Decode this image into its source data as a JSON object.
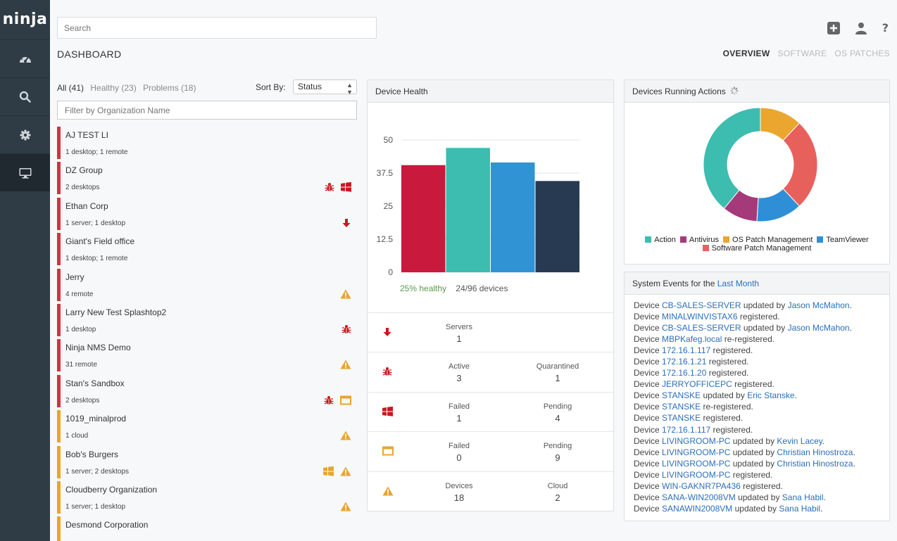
{
  "app": {
    "logo": "ninja"
  },
  "nav": [
    {
      "icon": "dashboard-gauge-icon"
    },
    {
      "icon": "search-icon"
    },
    {
      "icon": "gear-icon"
    },
    {
      "icon": "monitor-icon",
      "active": true
    }
  ],
  "search": {
    "placeholder": "Search"
  },
  "top_icons": [
    "add-icon",
    "user-icon",
    "help-icon"
  ],
  "help_label": "?",
  "page_title": "DASHBOARD",
  "tabs": [
    {
      "label": "OVERVIEW",
      "active": true
    },
    {
      "label": "SOFTWARE"
    },
    {
      "label": "OS PATCHES"
    }
  ],
  "filters": {
    "all": "All (41)",
    "healthy": "Healthy (23)",
    "problems": "Problems (18)"
  },
  "sort": {
    "label": "Sort By:",
    "value": "Status"
  },
  "org_filter": {
    "placeholder": "Filter by Organization Name"
  },
  "orgs": [
    {
      "name": "AJ TEST LI",
      "meta": "1 desktop; 1 remote",
      "status": "red",
      "icons": []
    },
    {
      "name": "DZ Group",
      "meta": "2 desktops",
      "status": "red",
      "icons": [
        "bug-icon",
        "windows-icon"
      ]
    },
    {
      "name": "Ethan Corp",
      "meta": "1 server; 1 desktop",
      "status": "red",
      "icons": [
        "arrow-down-icon"
      ]
    },
    {
      "name": "Giant's Field office",
      "meta": "1 desktop; 1 remote",
      "status": "red",
      "icons": []
    },
    {
      "name": "Jerry",
      "meta": "4 remote",
      "status": "red",
      "icons": [
        "warning-icon"
      ]
    },
    {
      "name": "Larry New Test Splashtop2",
      "meta": "1 desktop",
      "status": "red",
      "icons": [
        "bug-icon"
      ]
    },
    {
      "name": "Ninja NMS Demo",
      "meta": "31 remote",
      "status": "red",
      "icons": [
        "warning-icon"
      ]
    },
    {
      "name": "Stan's Sandbox",
      "meta": "2 desktops",
      "status": "red",
      "icons": [
        "bug-icon",
        "window-icon"
      ]
    },
    {
      "name": "1019_minalprod",
      "meta": "1 cloud",
      "status": "orange",
      "icons": [
        "warning-icon"
      ]
    },
    {
      "name": "Bob's Burgers",
      "meta": "1 server; 2 desktops",
      "status": "orange",
      "icons": [
        "windows-icon-orange",
        "warning-icon"
      ]
    },
    {
      "name": "Cloudberry Organization",
      "meta": "1 server; 1 desktop",
      "status": "orange",
      "icons": [
        "warning-icon"
      ]
    },
    {
      "name": "Desmond Corporation",
      "meta": "",
      "status": "orange",
      "icons": []
    }
  ],
  "colors": {
    "red": "#cc3540",
    "orange": "#e9a42f",
    "link": "#2a6ebb"
  },
  "device_health": {
    "title": "Device Health",
    "healthy_text": "25% healthy",
    "devices_text": "24/96 devices",
    "stats": [
      {
        "icon": "arrow-down-icon",
        "cols": [
          {
            "label": "Servers",
            "value": "1"
          }
        ]
      },
      {
        "icon": "bug-icon",
        "cols": [
          {
            "label": "Active",
            "value": "3"
          },
          {
            "label": "Quarantined",
            "value": "1"
          }
        ]
      },
      {
        "icon": "windows-icon",
        "cols": [
          {
            "label": "Failed",
            "value": "1"
          },
          {
            "label": "Pending",
            "value": "4"
          }
        ]
      },
      {
        "icon": "window-icon",
        "cols": [
          {
            "label": "Failed",
            "value": "0"
          },
          {
            "label": "Pending",
            "value": "9"
          }
        ]
      },
      {
        "icon": "warning-icon",
        "cols": [
          {
            "label": "Devices",
            "value": "18"
          },
          {
            "label": "Cloud",
            "value": "2"
          }
        ]
      }
    ]
  },
  "running_actions": {
    "title": "Devices Running Actions",
    "loading_icon": "spinner-icon"
  },
  "system_events": {
    "title_prefix": "System Events for the",
    "title_link": "Last Month",
    "events": [
      [
        "Device ",
        {
          "l": "CB-SALES-SERVER"
        },
        " updated by ",
        {
          "l": "Jason McMahon"
        },
        "."
      ],
      [
        "Device ",
        {
          "l": "MINALWINVISTAX6"
        },
        " registered."
      ],
      [
        "Device ",
        {
          "l": "CB-SALES-SERVER"
        },
        " updated by ",
        {
          "l": "Jason McMahon"
        },
        "."
      ],
      [
        "Device ",
        {
          "l": "MBPKafeg.local"
        },
        " re-registered."
      ],
      [
        "Device ",
        {
          "l": "172.16.1.117"
        },
        " registered."
      ],
      [
        "Device ",
        {
          "l": "172.16.1.21"
        },
        " registered."
      ],
      [
        "Device ",
        {
          "l": "172.16.1.20"
        },
        " registered."
      ],
      [
        "Device ",
        {
          "l": "JERRYOFFICEPC"
        },
        " registered."
      ],
      [
        "Device ",
        {
          "l": "STANSKE"
        },
        " updated by ",
        {
          "l": "Eric Stanske"
        },
        "."
      ],
      [
        "Device ",
        {
          "l": "STANSKE"
        },
        " re-registered."
      ],
      [
        "Device ",
        {
          "l": "STANSKE"
        },
        " registered."
      ],
      [
        "Device ",
        {
          "l": "172.16.1.117"
        },
        " registered."
      ],
      [
        "Device ",
        {
          "l": "LIVINGROOM-PC"
        },
        " updated by ",
        {
          "l": "Kevin Lacey"
        },
        "."
      ],
      [
        "Device ",
        {
          "l": "LIVINGROOM-PC"
        },
        " updated by ",
        {
          "l": "Christian Hinostroza"
        },
        "."
      ],
      [
        "Device ",
        {
          "l": "LIVINGROOM-PC"
        },
        " updated by ",
        {
          "l": "Christian Hinostroza"
        },
        "."
      ],
      [
        "Device ",
        {
          "l": "LIVINGROOM-PC"
        },
        " registered."
      ],
      [
        "Device ",
        {
          "l": "WIN-GAKNR7PA436"
        },
        " registered."
      ],
      [
        "Device ",
        {
          "l": "SANA-WIN2008VM"
        },
        " updated by ",
        {
          "l": "Sana Habil"
        },
        "."
      ],
      [
        "Device ",
        {
          "l": "SANAWIN2008VM"
        },
        " updated by ",
        {
          "l": "Sana Habil"
        },
        "."
      ]
    ]
  },
  "chart_data": [
    {
      "type": "bar",
      "title": "Device Health",
      "yticks": [
        "0",
        "12.5",
        "25",
        "37.5",
        "50"
      ],
      "ylim": [
        0,
        50
      ],
      "grid": true,
      "values": [
        40.5,
        47,
        41.5,
        34.5
      ],
      "colors": [
        "#c9193d",
        "#3dbcb0",
        "#2f93d4",
        "#283a52"
      ]
    },
    {
      "type": "pie",
      "style": "donut",
      "title": "Devices Running Actions",
      "slices": [
        {
          "label": "Action",
          "value": 39,
          "color": "#3dbcb0"
        },
        {
          "label": "Antivirus",
          "value": 10,
          "color": "#a43a7a"
        },
        {
          "label": "OS Patch Management",
          "value": 12,
          "color": "#eaa62e"
        },
        {
          "label": "TeamViewer",
          "value": 13,
          "color": "#2f8fd6"
        },
        {
          "label": "Software Patch Management",
          "value": 26,
          "color": "#e8605c"
        }
      ],
      "slice_order": [
        "OS Patch Management",
        "Software Patch Management",
        "TeamViewer",
        "Antivirus",
        "Action"
      ]
    }
  ]
}
